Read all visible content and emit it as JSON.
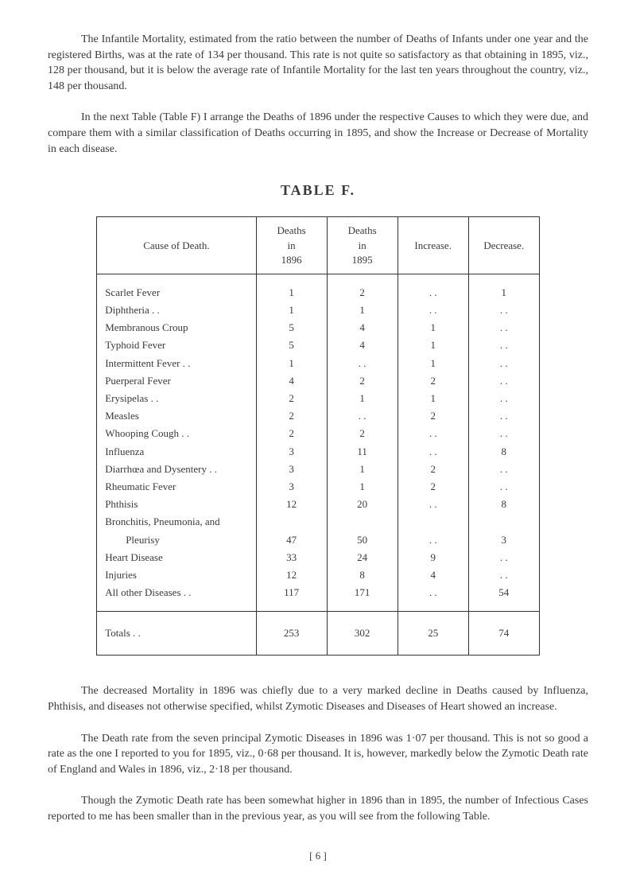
{
  "paragraphs": {
    "p1": "The Infantile Mortality, estimated from the ratio between the number of Deaths of Infants under one year and the registered Births, was at the rate of 134 per thousand. This rate is not quite so satisfactory as that obtaining in 1895, viz., 128 per thousand, but it is below the average rate of Infantile Mortality for the last ten years throughout the country, viz., 148 per thousand.",
    "p2": "In the next Table (Table F) I arrange the Deaths of 1896 under the respective Causes to which they were due, and compare them with a similar classification of Deaths occurring in 1895, and show the Increase or Decrease of Mortality in each disease.",
    "p3": "The decreased Mortality in 1896 was chiefly due to a very marked decline in Deaths caused by Influenza, Phthisis, and diseases not otherwise specified, whilst Zymotic Diseases and Diseases of Heart showed an increase.",
    "p4": "The Death rate from the seven principal Zymotic Diseases in 1896 was 1·07 per thousand. This is not so good a rate as the one I reported to you for 1895, viz., 0·68 per thousand. It is, however, markedly below the Zymotic Death rate of England and Wales in 1896, viz., 2·18 per thousand.",
    "p5": "Though the Zymotic Death rate has been somewhat higher in 1896 than in 1895, the number of Infectious Cases reported to me has been smaller than in the previous year, as you will see from the following Table."
  },
  "table_title": "TABLE F.",
  "table": {
    "headers": {
      "cause": "Cause of Death.",
      "d1896": "Deaths\nin\n1896",
      "d1895": "Deaths\nin\n1895",
      "increase": "Increase.",
      "decrease": "Decrease."
    },
    "rows": [
      {
        "cause": "Scarlet Fever",
        "d1896": "1",
        "d1895": "2",
        "increase": ". .",
        "decrease": "1"
      },
      {
        "cause": "Diphtheria . .",
        "d1896": "1",
        "d1895": "1",
        "increase": ". .",
        "decrease": ". ."
      },
      {
        "cause": "Membranous Croup",
        "d1896": "5",
        "d1895": "4",
        "increase": "1",
        "decrease": ". ."
      },
      {
        "cause": "Typhoid Fever",
        "d1896": "5",
        "d1895": "4",
        "increase": "1",
        "decrease": ". ."
      },
      {
        "cause": "Intermittent Fever . .",
        "d1896": "1",
        "d1895": ". .",
        "increase": "1",
        "decrease": ". ."
      },
      {
        "cause": "Puerperal Fever",
        "d1896": "4",
        "d1895": "2",
        "increase": "2",
        "decrease": ". ."
      },
      {
        "cause": "Erysipelas . .",
        "d1896": "2",
        "d1895": "1",
        "increase": "1",
        "decrease": ". ."
      },
      {
        "cause": "Measles",
        "d1896": "2",
        "d1895": ". .",
        "increase": "2",
        "decrease": ". ."
      },
      {
        "cause": "Whooping Cough . .",
        "d1896": "2",
        "d1895": "2",
        "increase": ". .",
        "decrease": ". ."
      },
      {
        "cause": "Influenza",
        "d1896": "3",
        "d1895": "11",
        "increase": ". .",
        "decrease": "8"
      },
      {
        "cause": "Diarrhœa and Dysentery . .",
        "d1896": "3",
        "d1895": "1",
        "increase": "2",
        "decrease": ". ."
      },
      {
        "cause": "Rheumatic Fever",
        "d1896": "3",
        "d1895": "1",
        "increase": "2",
        "decrease": ". ."
      },
      {
        "cause": "Phthisis",
        "d1896": "12",
        "d1895": "20",
        "increase": ". .",
        "decrease": "8"
      },
      {
        "cause": "Bronchitis, Pneumonia, and",
        "d1896": "",
        "d1895": "",
        "increase": "",
        "decrease": ""
      },
      {
        "cause": "        Pleurisy",
        "d1896": "47",
        "d1895": "50",
        "increase": ". .",
        "decrease": "3"
      },
      {
        "cause": "Heart Disease",
        "d1896": "33",
        "d1895": "24",
        "increase": "9",
        "decrease": ". ."
      },
      {
        "cause": "Injuries",
        "d1896": "12",
        "d1895": "8",
        "increase": "4",
        "decrease": ". ."
      },
      {
        "cause": "All other Diseases . .",
        "d1896": "117",
        "d1895": "171",
        "increase": ". .",
        "decrease": "54"
      }
    ],
    "totals": {
      "cause": "Totals . .",
      "d1896": "253",
      "d1895": "302",
      "increase": "25",
      "decrease": "74"
    }
  },
  "page_num": "[ 6 ]"
}
